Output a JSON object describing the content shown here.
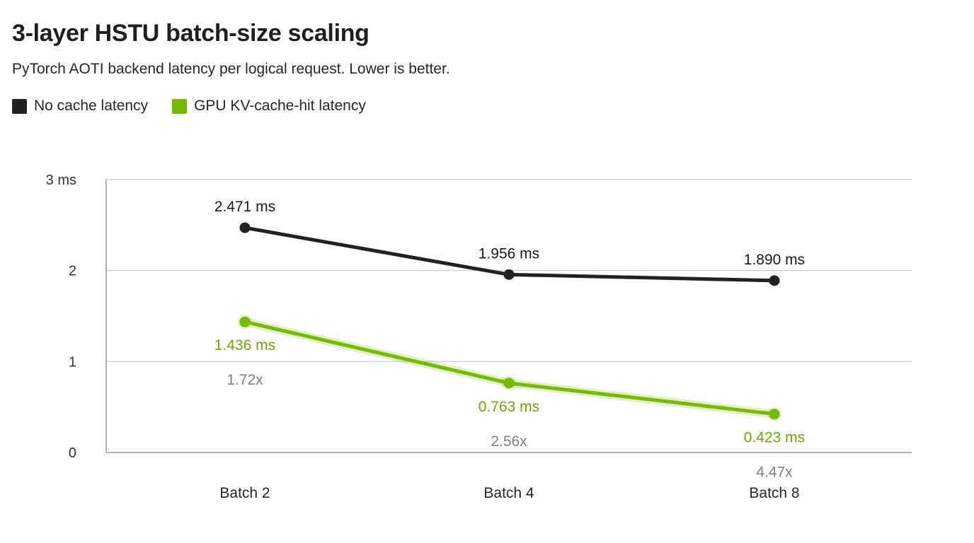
{
  "chart_data": {
    "type": "line",
    "title": "3-layer HSTU batch-size scaling",
    "subtitle": "PyTorch AOTI backend latency per logical request. Lower is better.",
    "categories": [
      "Batch 2",
      "Batch 4",
      "Batch 8"
    ],
    "yticks": [
      {
        "value": 0,
        "label": "0"
      },
      {
        "value": 1,
        "label": "1"
      },
      {
        "value": 2,
        "label": "2"
      },
      {
        "value": 3,
        "label": "3 ms"
      }
    ],
    "ylim": [
      0,
      3
    ],
    "grid": true,
    "legend_position": "top-left",
    "series": [
      {
        "name": "No cache latency",
        "color": "#222222",
        "values": [
          2.471,
          1.956,
          1.89
        ],
        "labels": [
          "2.471 ms",
          "1.956 ms",
          "1.890 ms"
        ]
      },
      {
        "name": "GPU KV-cache-hit latency",
        "color": "#76b900",
        "values": [
          1.436,
          0.763,
          0.423
        ],
        "labels": [
          "1.436 ms",
          "0.763 ms",
          "0.423 ms"
        ]
      }
    ],
    "speedups": [
      "1.72x",
      "2.56x",
      "4.47x"
    ]
  }
}
